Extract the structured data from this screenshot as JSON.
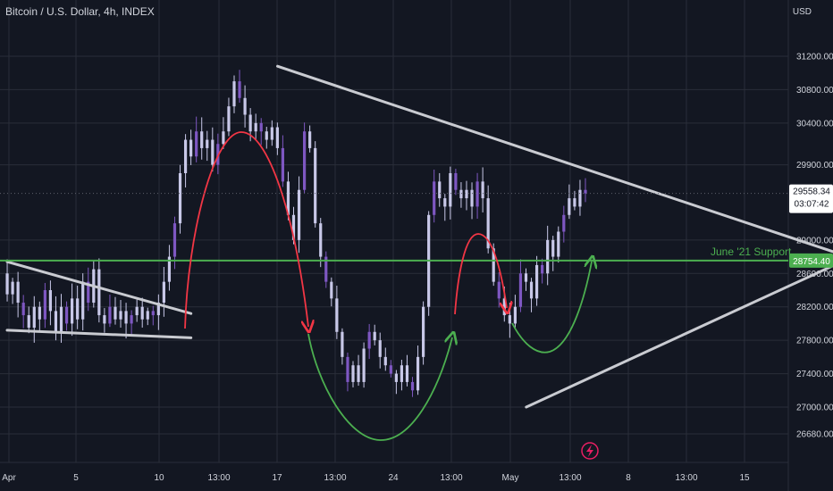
{
  "header": {
    "title": "Bitcoin / U.S. Dollar, 4h, INDEX",
    "currency": "USD"
  },
  "colors": {
    "background": "#131722",
    "grid": "#2a2e39",
    "candle": "#c8c8e8",
    "candle_accent": "#7e57c2",
    "trendline": "#c9cbd1",
    "support": "#4caf50",
    "red_arrow": "#f23645",
    "green_arrow": "#4caf50",
    "price_badge_bg": "#ffffff",
    "price_badge_text": "#131722",
    "support_badge_bg": "#4caf50",
    "support_badge_text": "#ffffff",
    "lightning": "#e91e63"
  },
  "chart_data": {
    "type": "candlestick",
    "title": "Bitcoin / U.S. Dollar, 4h, INDEX",
    "y_axis": {
      "ticks": [
        31200,
        30800,
        30400,
        29900,
        29000,
        28600,
        28200,
        27800,
        27400,
        27000,
        26680
      ],
      "tick_labels": [
        "31200.00",
        "30800.00",
        "30400.00",
        "29900.00",
        "29000.00",
        "28600.00",
        "28200.00",
        "27800.00",
        "27400.00",
        "27000.00",
        "26680.00"
      ],
      "ylim": [
        26500,
        31350
      ]
    },
    "x_axis": {
      "tick_labels": [
        "Apr",
        "5",
        "10",
        "13:00",
        "17",
        "13:00",
        "24",
        "13:00",
        "May",
        "13:00",
        "8",
        "13:00",
        "15"
      ]
    },
    "last_price": "29558.34",
    "countdown": "03:07:42",
    "support_level": 28754.4,
    "support_label": "28754.40",
    "support_annotation": "June '21 Support",
    "triangle_top": [
      {
        "t": "2022-04-13 12:00",
        "price": 31080
      },
      {
        "t": "2022-05-10 00:00",
        "price": 28790
      }
    ],
    "triangle_bottom": [
      {
        "t": "2022-04-25 00:00",
        "price": 27000
      },
      {
        "t": "2022-05-10 00:00",
        "price": 28790
      }
    ],
    "wedge_top": [
      {
        "t": "2022-04-01 00:00",
        "price": 28740
      },
      {
        "t": "2022-04-09 12:00",
        "price": 28120
      }
    ],
    "wedge_bottom": [
      {
        "t": "2022-04-01 00:00",
        "price": 27920
      },
      {
        "t": "2022-04-09 12:00",
        "price": 27830
      }
    ],
    "price_path": [
      28600,
      28350,
      28500,
      28250,
      28100,
      27950,
      28200,
      28050,
      28400,
      28150,
      27900,
      28200,
      28000,
      28300,
      28050,
      28500,
      28250,
      28650,
      28100,
      28000,
      28200,
      28050,
      28150,
      28000,
      28100,
      28200,
      28050,
      28150,
      28100,
      28250,
      28500,
      28800,
      29200,
      29800,
      30200,
      30000,
      30300,
      30100,
      30200,
      29900,
      30150,
      30300,
      30600,
      30900,
      30700,
      30500,
      30300,
      30400,
      30300,
      30200,
      30350,
      30100,
      29700,
      29300,
      29000,
      29600,
      30300,
      30100,
      29200,
      28800,
      28500,
      28300,
      27900,
      27600,
      27300,
      27500,
      27300,
      27700,
      27900,
      27800,
      27600,
      27500,
      27400,
      27300,
      27500,
      27300,
      27200,
      27600,
      28200,
      29300,
      29700,
      29500,
      29400,
      29800,
      29600,
      29500,
      29600,
      29400,
      29700,
      29500,
      28900,
      28500,
      28300,
      28100,
      28000,
      28200,
      28600,
      28500,
      28300,
      28700,
      28600,
      29000,
      28800,
      29100,
      29300,
      29500,
      29400,
      29600,
      29558
    ]
  }
}
